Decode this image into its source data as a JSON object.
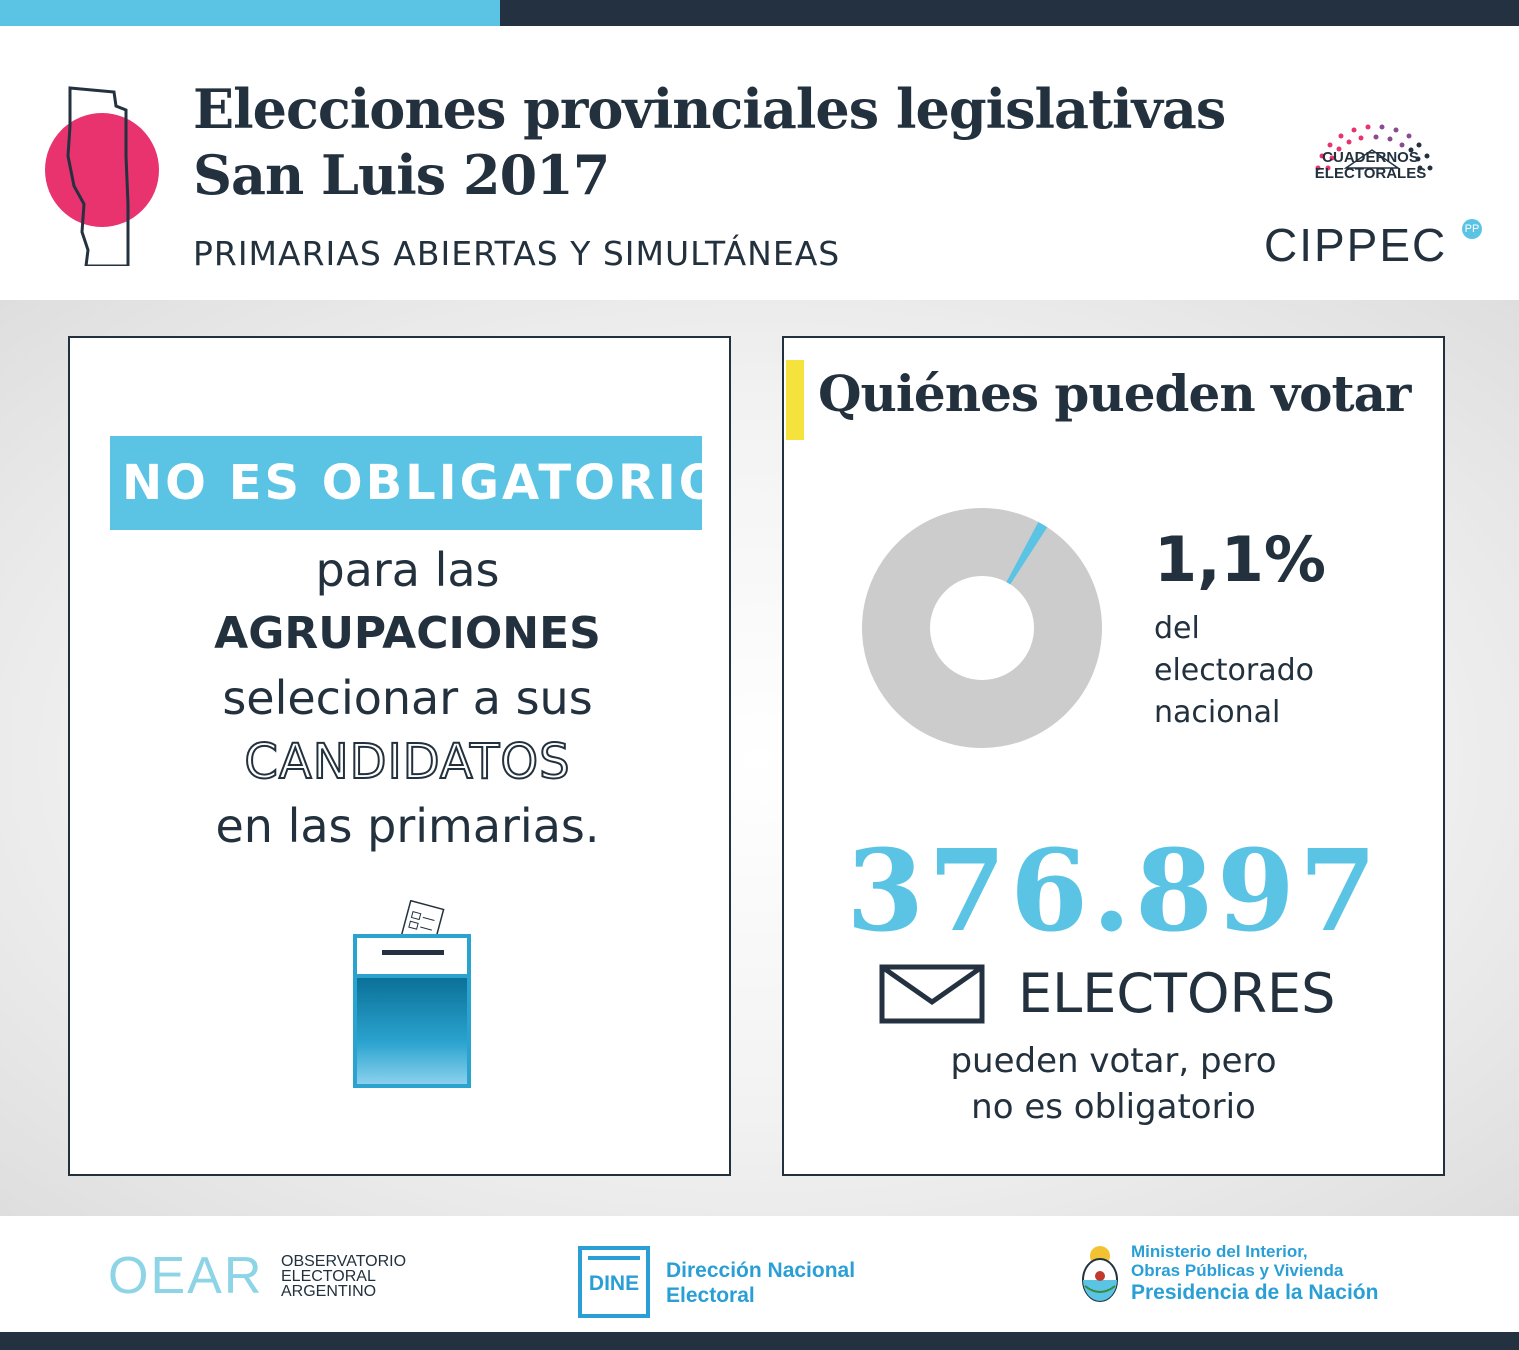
{
  "header": {
    "title_line1": "Elecciones provinciales legislativas",
    "title_line2": "San Luis 2017",
    "subtitle": "PRIMARIAS ABIERTAS Y SIMULTÁNEAS",
    "cuadernos_line1": "CUADERNOS",
    "cuadernos_line2": "ELECTORALES",
    "cippec": "CIPPEC",
    "cippec_mark": "PP"
  },
  "left_panel": {
    "badge": "NO ES OBLIGATORIO",
    "line1": "para las",
    "line2": "AGRUPACIONES",
    "line3": "selecionar a sus",
    "line4": "CANDIDATOS",
    "line5": "en las primarias.",
    "icon": "ballot-box-icon"
  },
  "right_panel": {
    "title": "Quiénes pueden votar",
    "percent_label": "1,1%",
    "percent_value": 1.1,
    "percent_text_line1": "del",
    "percent_text_line2": "electorado",
    "percent_text_line3": "nacional",
    "electors_number": "376.897",
    "electors_label": "ELECTORES",
    "note_line1": "pueden votar, pero",
    "note_line2": "no es obligatorio",
    "icon": "envelope-icon"
  },
  "footer": {
    "oear_logo": "OEAR",
    "oear_line1": "OBSERVATORIO",
    "oear_line2": "ELECTORAL",
    "oear_line3": "ARGENTINO",
    "dine_logo": "DINE",
    "dine_line1": "Dirección Nacional",
    "dine_line2": "Electoral",
    "min_line1": "Ministerio del Interior,",
    "min_line2": "Obras Públicas y Vivienda",
    "min_line3": "Presidencia de la Nación"
  },
  "colors": {
    "accent_blue": "#5bc4e5",
    "dark": "#233140",
    "pink": "#e8336f",
    "yellow": "#f5e23d",
    "donut_gray": "#cccccc"
  }
}
